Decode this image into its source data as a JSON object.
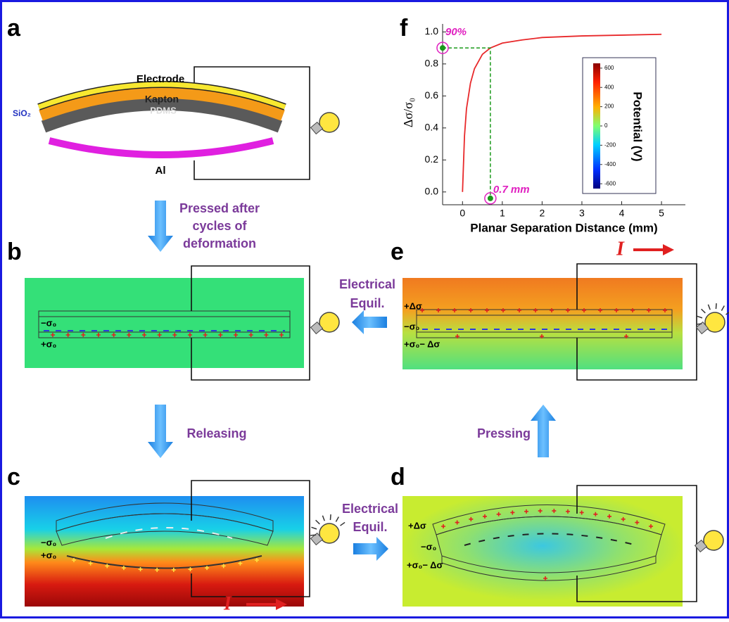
{
  "panels": {
    "a": {
      "label": "a",
      "electrode": "Electrode",
      "kapton": "Kapton",
      "pdms": "PDMS",
      "sio2": "SiO₂",
      "al": "Al"
    },
    "b": {
      "label": "b",
      "neg": "−σ₀",
      "pos": "+σ₀"
    },
    "c": {
      "label": "c",
      "neg": "−σ₀",
      "pos": "+σ₀",
      "current": "I"
    },
    "d": {
      "label": "d",
      "top": "+Δσ",
      "neg": "−σ₀",
      "bottom": "+σ₀− Δσ"
    },
    "e": {
      "label": "e",
      "top": "+Δσ",
      "neg": "−σ₀",
      "bottom": "+σ₀− Δσ",
      "current": "I"
    },
    "f": {
      "label": "f"
    }
  },
  "arrows": {
    "a_to_b": [
      "Pressed after",
      "cycles of",
      "deformation"
    ],
    "b_to_c": "Releasing",
    "c_to_d": [
      "Electrical",
      "Equil."
    ],
    "d_to_e": "Pressing",
    "e_to_b": [
      "Electrical",
      "Equil."
    ]
  },
  "chart_data": {
    "type": "line",
    "x_label": "Planar Separation Distance (mm)",
    "y_label": "Δσ/σ₀",
    "x": [
      0,
      0.05,
      0.1,
      0.2,
      0.3,
      0.5,
      0.7,
      1,
      1.5,
      2,
      3,
      4,
      5
    ],
    "series": [
      {
        "color": "#e8282a",
        "values": [
          0,
          0.35,
          0.52,
          0.68,
          0.77,
          0.86,
          0.9,
          0.93,
          0.95,
          0.965,
          0.975,
          0.98,
          0.985
        ]
      }
    ],
    "xlim": [
      -0.5,
      5.6
    ],
    "ylim": [
      -0.08,
      1.05
    ],
    "xticks": [
      0,
      1,
      2,
      3,
      4,
      5
    ],
    "yticks": [
      {
        "value": 0,
        "label": "0.0"
      },
      0.2,
      0.4,
      0.6,
      0.8,
      {
        "value": 1,
        "label": "1.0"
      }
    ],
    "markers": [
      {
        "x": -0.5,
        "y": 0.9,
        "label": "90%"
      },
      {
        "x": 0.7,
        "y": -0.04,
        "label": "0.7 mm"
      }
    ],
    "colorbar": {
      "label": "Potential (V)",
      "lim": [
        -650,
        650
      ],
      "ticks": [
        600,
        400,
        200,
        0,
        -200,
        -400,
        -600
      ]
    }
  }
}
